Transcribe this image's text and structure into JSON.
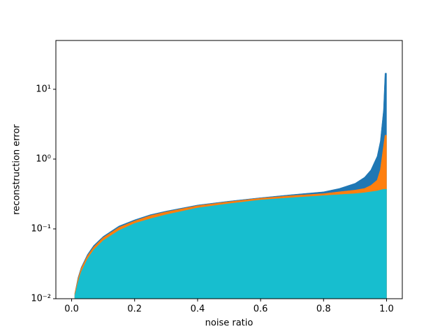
{
  "chart_data": {
    "type": "area",
    "xlabel": "noise ratio",
    "ylabel": "reconstruction error",
    "log_y": true,
    "x": [
      0.01,
      0.02,
      0.03,
      0.05,
      0.07,
      0.1,
      0.15,
      0.2,
      0.25,
      0.3,
      0.4,
      0.5,
      0.6,
      0.7,
      0.8,
      0.85,
      0.9,
      0.93,
      0.95,
      0.97,
      0.98,
      0.99,
      0.995,
      1.0
    ],
    "series": [
      {
        "color": "#1f77b4",
        "values": [
          0.012,
          0.02,
          0.028,
          0.043,
          0.058,
          0.078,
          0.11,
          0.135,
          0.16,
          0.18,
          0.22,
          0.25,
          0.28,
          0.31,
          0.34,
          0.38,
          0.45,
          0.55,
          0.7,
          1.1,
          1.8,
          5,
          17,
          17
        ]
      },
      {
        "color": "#ff7f0e",
        "values": [
          0.012,
          0.019,
          0.027,
          0.041,
          0.055,
          0.075,
          0.105,
          0.13,
          0.155,
          0.175,
          0.215,
          0.245,
          0.275,
          0.3,
          0.32,
          0.34,
          0.36,
          0.38,
          0.42,
          0.5,
          0.7,
          1.5,
          2.2,
          2.2
        ]
      },
      {
        "color": "#17becf",
        "values": [
          0.011,
          0.017,
          0.024,
          0.037,
          0.05,
          0.068,
          0.095,
          0.12,
          0.14,
          0.16,
          0.2,
          0.23,
          0.26,
          0.28,
          0.3,
          0.31,
          0.32,
          0.33,
          0.34,
          0.35,
          0.36,
          0.37,
          0.37,
          0.37
        ]
      }
    ],
    "xlim": [
      -0.05,
      1.05
    ],
    "xticks": [
      {
        "value": 0,
        "label": "0.0"
      },
      0.2,
      0.4,
      0.6,
      0.8,
      {
        "value": 1,
        "label": "1.0"
      }
    ],
    "ylim": [
      0.01,
      50
    ],
    "yticks": [
      {
        "value": 0.01,
        "label": "10⁻²"
      },
      {
        "value": 0.1,
        "label": "10⁻¹"
      },
      {
        "value": 1,
        "label": "10⁰"
      },
      {
        "value": 10,
        "label": "10¹"
      }
    ]
  }
}
